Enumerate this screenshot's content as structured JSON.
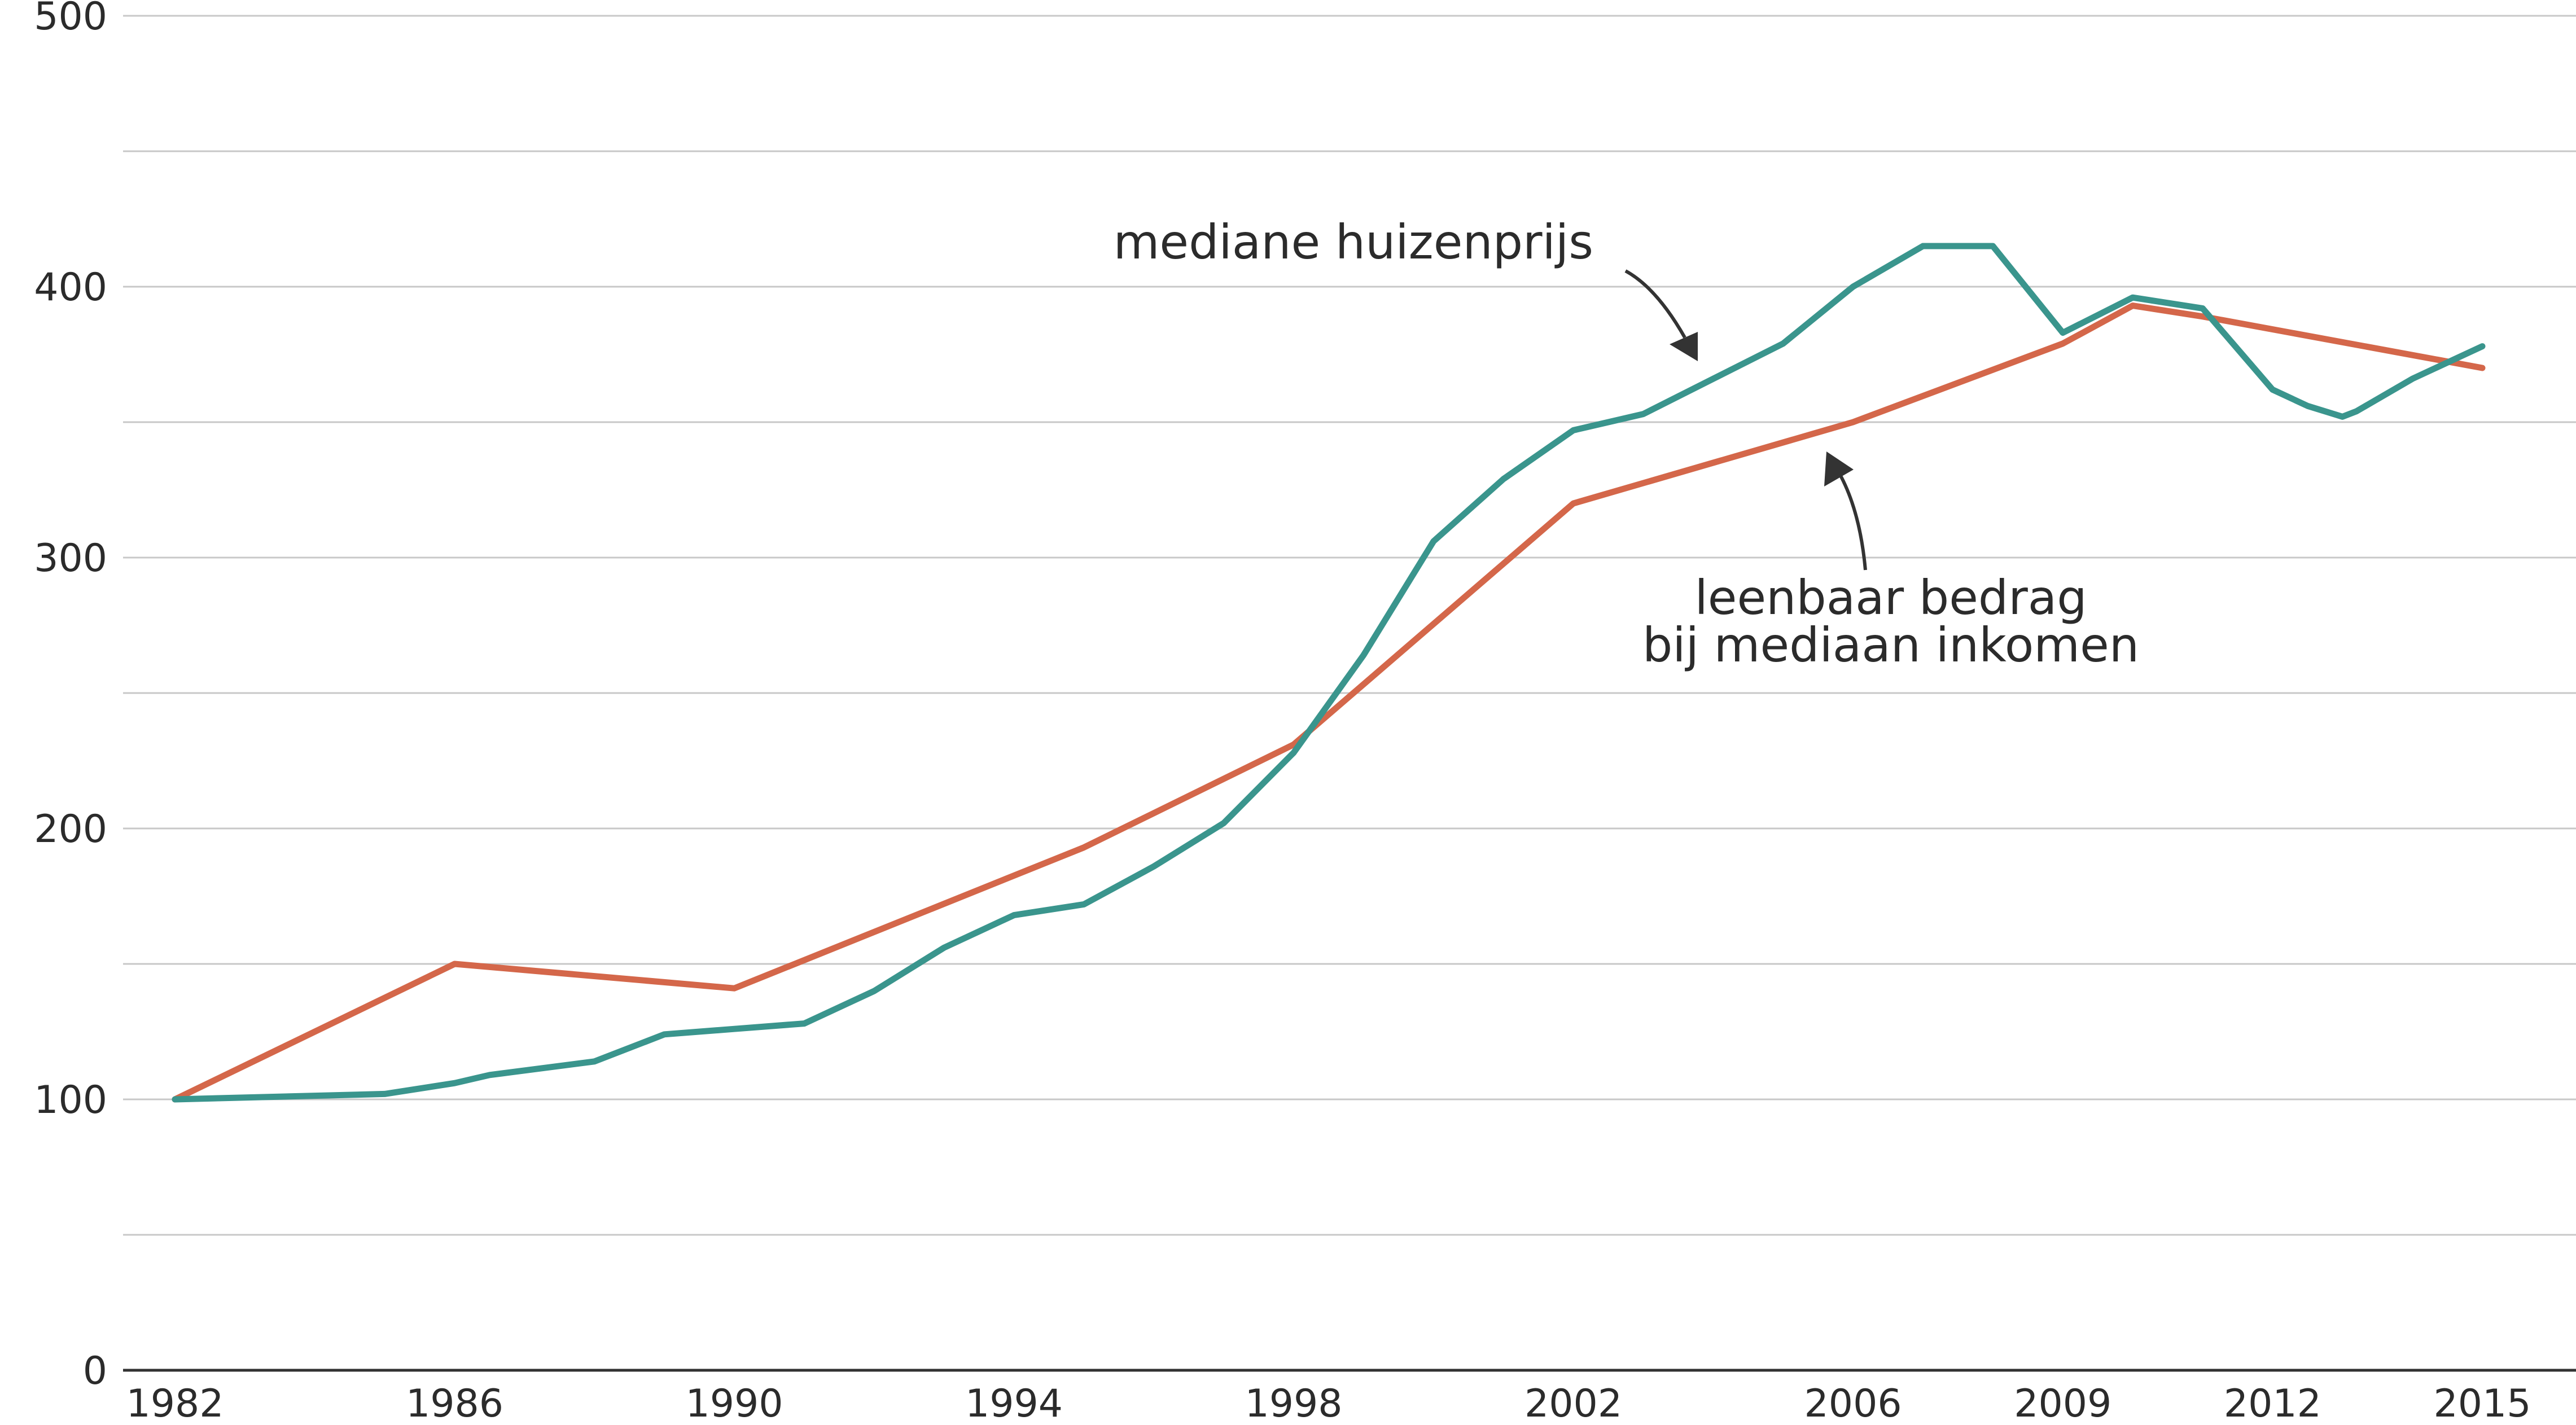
{
  "chart_data": {
    "type": "line",
    "title": "",
    "xlabel": "",
    "ylabel": "",
    "xlim": [
      1982,
      2015
    ],
    "ylim": [
      0,
      500
    ],
    "yticks": [
      0,
      100,
      200,
      300,
      400,
      500
    ],
    "xticks": [
      1982,
      1986,
      1990,
      1994,
      1998,
      2002,
      2006,
      2009,
      2012,
      2015
    ],
    "grid": true,
    "colors": {
      "mediane_huizenprijs": "#3a958d",
      "leenbaar_bedrag": "#d4674a",
      "grid": "#c8c8c8",
      "axis": "#333333"
    },
    "annotations": [
      {
        "text": [
          "mediane huizenprijs"
        ],
        "series": "mediane huizenprijs"
      },
      {
        "text": [
          "leenbaar bedrag",
          "bij mediaan inkomen"
        ],
        "series": "leenbaar bedrag bij mediaan inkomen"
      }
    ],
    "series": [
      {
        "name": "mediane huizenprijs",
        "color": "#3a958d",
        "x": [
          1982,
          1985,
          1986,
          1986.5,
          1988,
          1989,
          1990,
          1991,
          1992,
          1993,
          1994,
          1995,
          1996,
          1997,
          1998,
          1999,
          2000,
          2001,
          2002,
          2003,
          2004,
          2005,
          2006,
          2007,
          2008,
          2009,
          2010,
          2011,
          2012,
          2012.5,
          2013,
          2013.2,
          2014,
          2015
        ],
        "values": [
          100,
          102,
          106,
          109,
          114,
          124,
          126,
          128,
          140,
          156,
          168,
          172,
          186,
          202,
          228,
          264,
          306,
          329,
          347,
          353,
          366,
          379,
          400,
          415,
          415,
          383,
          396,
          392,
          362,
          356,
          352,
          354,
          366,
          378
        ]
      },
      {
        "name": "leenbaar bedrag bij mediaan inkomen",
        "color": "#d4674a",
        "x": [
          1982,
          1986,
          1990,
          1995,
          1998,
          2002,
          2006,
          2009,
          2010,
          2011,
          2015
        ],
        "values": [
          100,
          150,
          141,
          193,
          231,
          320,
          350,
          379,
          393,
          389,
          370
        ]
      }
    ]
  }
}
